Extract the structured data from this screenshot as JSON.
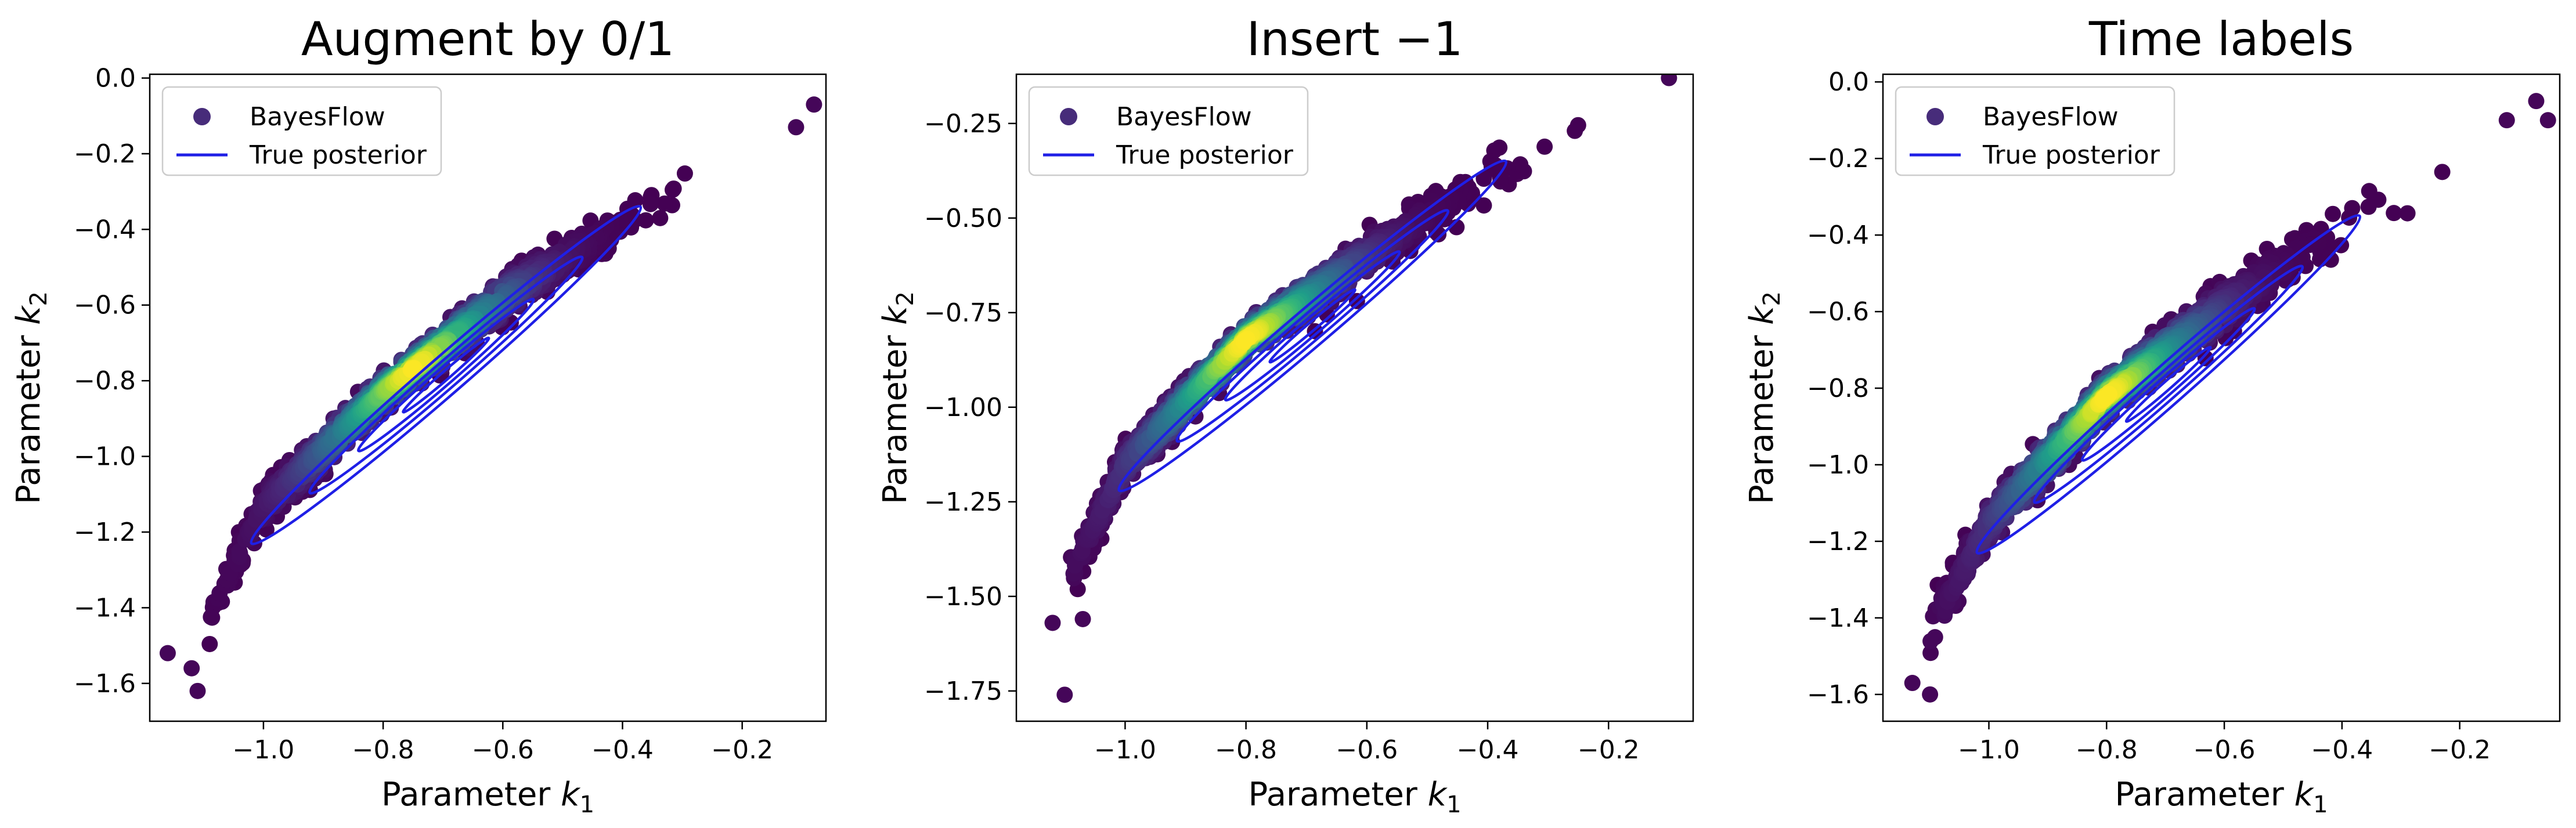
{
  "chart_data": [
    {
      "type": "scatter",
      "title": "Augment by 0/1",
      "xlabel": "Parameter k_1",
      "ylabel": "Parameter k_2",
      "xlim": [
        -1.19,
        -0.06
      ],
      "ylim": [
        -1.7,
        0.01
      ],
      "xticks": [
        -1.0,
        -0.8,
        -0.6,
        -0.4,
        -0.2
      ],
      "xtick_labels": [
        "−1.0",
        "−0.8",
        "−0.6",
        "−0.4",
        "−0.2"
      ],
      "yticks": [
        -1.6,
        -1.4,
        -1.2,
        -1.0,
        -0.8,
        -0.6,
        -0.4,
        -0.2,
        0.0
      ],
      "ytick_labels": [
        "−1.6",
        "−1.4",
        "−1.2",
        "−1.0",
        "−0.8",
        "−0.6",
        "−0.4",
        "−0.2",
        "0.0"
      ],
      "legend": {
        "placement": "upper-left",
        "entries": [
          {
            "label": "BayesFlow",
            "marker": "circle",
            "color": "#472c7a"
          },
          {
            "label": "True posterior",
            "marker": "line",
            "color": "#1f1fe6"
          }
        ]
      },
      "grid": false,
      "colormap": "viridis",
      "bayesflow_samples": {
        "trend": {
          "x": [
            -1.11,
            -1.0,
            -0.8,
            -0.6,
            -0.4,
            -0.2,
            -0.08
          ],
          "y": [
            -1.48,
            -1.13,
            -0.83,
            -0.58,
            -0.38,
            -0.2,
            -0.09
          ]
        },
        "width_y": 0.07,
        "center": [
          -0.75,
          -0.77
        ],
        "count": 1400
      },
      "posterior_contours": {
        "center": [
          -0.69,
          -0.8
        ],
        "major_axis_endpoints": [
          [
            -1.02,
            -1.23
          ],
          [
            -0.37,
            -0.34
          ]
        ],
        "half_width_y": 0.06,
        "levels": [
          1.0,
          0.7,
          0.45,
          0.22
        ]
      },
      "outliers": [
        {
          "x": -1.16,
          "y": -1.52
        },
        {
          "x": -1.11,
          "y": -1.62
        },
        {
          "x": -1.12,
          "y": -1.56
        },
        {
          "x": -0.11,
          "y": -0.13
        },
        {
          "x": -0.08,
          "y": -0.07
        }
      ]
    },
    {
      "type": "scatter",
      "title": "Insert −1",
      "xlabel": "Parameter k_1",
      "ylabel": "Parameter k_2",
      "xlim": [
        -1.18,
        -0.06
      ],
      "ylim": [
        -1.83,
        -0.12
      ],
      "xticks": [
        -1.0,
        -0.8,
        -0.6,
        -0.4,
        -0.2
      ],
      "xtick_labels": [
        "−1.0",
        "−0.8",
        "−0.6",
        "−0.4",
        "−0.2"
      ],
      "yticks": [
        -1.75,
        -1.5,
        -1.25,
        -1.0,
        -0.75,
        -0.5,
        -0.25
      ],
      "ytick_labels": [
        "−1.75",
        "−1.50",
        "−1.25",
        "−1.00",
        "−0.75",
        "−0.50",
        "−0.25"
      ],
      "legend": {
        "placement": "upper-left",
        "entries": [
          {
            "label": "BayesFlow",
            "marker": "circle",
            "color": "#472c7a"
          },
          {
            "label": "True posterior",
            "marker": "line",
            "color": "#1f1fe6"
          }
        ]
      },
      "grid": false,
      "colormap": "viridis",
      "bayesflow_samples": {
        "trend": {
          "x": [
            -1.11,
            -1.0,
            -0.8,
            -0.6,
            -0.4,
            -0.2,
            -0.1
          ],
          "y": [
            -1.5,
            -1.15,
            -0.82,
            -0.6,
            -0.39,
            -0.22,
            -0.12
          ]
        },
        "width_y": 0.07,
        "center": [
          -0.8,
          -0.8
        ],
        "count": 1400
      },
      "posterior_contours": {
        "center": [
          -0.69,
          -0.8
        ],
        "major_axis_endpoints": [
          [
            -1.01,
            -1.22
          ],
          [
            -0.37,
            -0.35
          ]
        ],
        "half_width_y": 0.06,
        "levels": [
          1.0,
          0.7,
          0.45,
          0.22
        ]
      },
      "outliers": [
        {
          "x": -1.1,
          "y": -1.76
        },
        {
          "x": -1.12,
          "y": -1.57
        },
        {
          "x": -1.07,
          "y": -1.56
        },
        {
          "x": -0.1,
          "y": -0.11
        },
        {
          "x": -0.1,
          "y": -0.13
        }
      ]
    },
    {
      "type": "scatter",
      "title": "Time labels",
      "xlabel": "Parameter k_1",
      "ylabel": "Parameter k_2",
      "xlim": [
        -1.18,
        -0.03
      ],
      "ylim": [
        -1.67,
        0.02
      ],
      "xticks": [
        -1.0,
        -0.8,
        -0.6,
        -0.4,
        -0.2
      ],
      "xtick_labels": [
        "−1.0",
        "−0.8",
        "−0.6",
        "−0.4",
        "−0.2"
      ],
      "yticks": [
        -1.6,
        -1.4,
        -1.2,
        -1.0,
        -0.8,
        -0.6,
        -0.4,
        -0.2,
        0.0
      ],
      "ytick_labels": [
        "−1.6",
        "−1.4",
        "−1.2",
        "−1.0",
        "−0.8",
        "−0.6",
        "−0.4",
        "−0.2",
        "0.0"
      ],
      "legend": {
        "placement": "upper-left",
        "entries": [
          {
            "label": "BayesFlow",
            "marker": "circle",
            "color": "#472c7a"
          },
          {
            "label": "True posterior",
            "marker": "line",
            "color": "#1f1fe6"
          }
        ]
      },
      "grid": false,
      "colormap": "viridis",
      "bayesflow_samples": {
        "trend": {
          "x": [
            -1.12,
            -1.0,
            -0.8,
            -0.6,
            -0.4,
            -0.2,
            -0.07
          ],
          "y": [
            -1.5,
            -1.15,
            -0.82,
            -0.59,
            -0.38,
            -0.2,
            -0.05
          ]
        },
        "width_y": 0.08,
        "center": [
          -0.8,
          -0.8
        ],
        "count": 1400
      },
      "posterior_contours": {
        "center": [
          -0.69,
          -0.8
        ],
        "major_axis_endpoints": [
          [
            -1.02,
            -1.23
          ],
          [
            -0.37,
            -0.35
          ]
        ],
        "half_width_y": 0.06,
        "levels": [
          1.0,
          0.7,
          0.45,
          0.22
        ]
      },
      "outliers": [
        {
          "x": -1.13,
          "y": -1.57
        },
        {
          "x": -1.1,
          "y": -1.6
        },
        {
          "x": -0.07,
          "y": -0.05
        },
        {
          "x": -0.12,
          "y": -0.1
        },
        {
          "x": -0.05,
          "y": -0.1
        }
      ]
    }
  ]
}
